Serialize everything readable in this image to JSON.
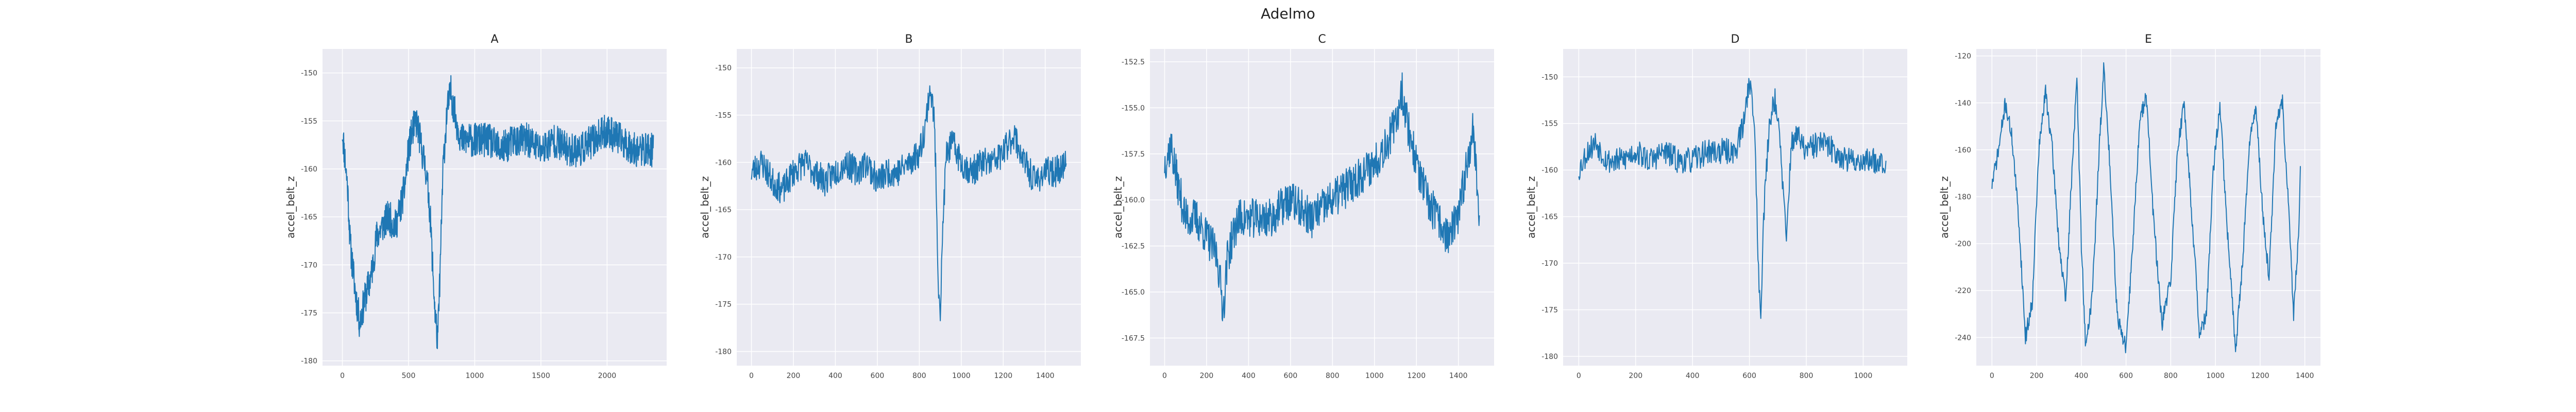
{
  "figure": {
    "title": "Adelmo"
  },
  "style": {
    "plot_bg": "#eaeaf2",
    "grid": "#ffffff",
    "line": "#1f77b4"
  },
  "chart_data": [
    {
      "type": "line",
      "title": "A",
      "xlabel": "",
      "ylabel": "accel_belt_z",
      "xlim": [
        -150,
        2450
      ],
      "ylim": [
        -180.5,
        -147.5
      ],
      "xticks": [
        0,
        500,
        1000,
        1500,
        2000
      ],
      "yticks": [
        -150,
        -155,
        -160,
        -165,
        -170,
        -175,
        -180
      ],
      "grid": true,
      "seed": 11,
      "noise": 1.8,
      "keypoints": [
        [
          0,
          -156
        ],
        [
          20,
          -159
        ],
        [
          40,
          -162
        ],
        [
          60,
          -168
        ],
        [
          100,
          -173
        ],
        [
          130,
          -176
        ],
        [
          180,
          -173
        ],
        [
          220,
          -171
        ],
        [
          260,
          -167
        ],
        [
          300,
          -166
        ],
        [
          350,
          -165
        ],
        [
          400,
          -166
        ],
        [
          440,
          -164
        ],
        [
          470,
          -162
        ],
        [
          500,
          -158
        ],
        [
          530,
          -156
        ],
        [
          560,
          -155
        ],
        [
          600,
          -158
        ],
        [
          630,
          -160
        ],
        [
          660,
          -164
        ],
        [
          700,
          -175
        ],
        [
          720,
          -178
        ],
        [
          740,
          -170
        ],
        [
          760,
          -160
        ],
        [
          790,
          -154
        ],
        [
          820,
          -152
        ],
        [
          860,
          -155
        ],
        [
          900,
          -157
        ],
        [
          1000,
          -157
        ],
        [
          1100,
          -157
        ],
        [
          1200,
          -158
        ],
        [
          1300,
          -157
        ],
        [
          1400,
          -157
        ],
        [
          1500,
          -158
        ],
        [
          1600,
          -157
        ],
        [
          1700,
          -158
        ],
        [
          1800,
          -158
        ],
        [
          1900,
          -157
        ],
        [
          2000,
          -156
        ],
        [
          2100,
          -157
        ],
        [
          2200,
          -158
        ],
        [
          2300,
          -158
        ],
        [
          2350,
          -158
        ]
      ]
    },
    {
      "type": "line",
      "title": "B",
      "xlabel": "",
      "ylabel": "accel_belt_z",
      "xlim": [
        -70,
        1570
      ],
      "ylim": [
        -181.5,
        -148
      ],
      "xticks": [
        0,
        200,
        400,
        600,
        800,
        1000,
        1200,
        1400
      ],
      "yticks": [
        -150,
        -155,
        -160,
        -165,
        -170,
        -175,
        -180
      ],
      "grid": true,
      "seed": 23,
      "noise": 1.6,
      "keypoints": [
        [
          0,
          -161
        ],
        [
          50,
          -160
        ],
        [
          100,
          -162
        ],
        [
          150,
          -163
        ],
        [
          200,
          -161
        ],
        [
          250,
          -160
        ],
        [
          300,
          -161
        ],
        [
          350,
          -162
        ],
        [
          400,
          -161
        ],
        [
          450,
          -160
        ],
        [
          500,
          -161
        ],
        [
          550,
          -160
        ],
        [
          600,
          -162
        ],
        [
          650,
          -161
        ],
        [
          700,
          -161
        ],
        [
          750,
          -160
        ],
        [
          800,
          -159
        ],
        [
          830,
          -156
        ],
        [
          850,
          -152
        ],
        [
          870,
          -155
        ],
        [
          880,
          -162
        ],
        [
          890,
          -172
        ],
        [
          900,
          -176
        ],
        [
          915,
          -165
        ],
        [
          930,
          -159
        ],
        [
          960,
          -158
        ],
        [
          1000,
          -160
        ],
        [
          1050,
          -161
        ],
        [
          1100,
          -160
        ],
        [
          1150,
          -160
        ],
        [
          1200,
          -159
        ],
        [
          1250,
          -157
        ],
        [
          1300,
          -160
        ],
        [
          1350,
          -162
        ],
        [
          1400,
          -161
        ],
        [
          1450,
          -161
        ],
        [
          1500,
          -160
        ]
      ]
    },
    {
      "type": "line",
      "title": "C",
      "xlabel": "",
      "ylabel": "accel_belt_z",
      "xlim": [
        -70,
        1570
      ],
      "ylim": [
        -169,
        -151.8
      ],
      "xticks": [
        0,
        200,
        400,
        600,
        800,
        1000,
        1200,
        1400
      ],
      "yticks": [
        -152.5,
        -155.0,
        -157.5,
        -160.0,
        -162.5,
        -165.0,
        -167.5
      ],
      "grid": true,
      "seed": 37,
      "noise": 1.1,
      "keypoints": [
        [
          0,
          -158
        ],
        [
          30,
          -157
        ],
        [
          60,
          -159
        ],
        [
          100,
          -161
        ],
        [
          150,
          -161
        ],
        [
          200,
          -162
        ],
        [
          250,
          -163
        ],
        [
          280,
          -166
        ],
        [
          300,
          -163
        ],
        [
          350,
          -161
        ],
        [
          400,
          -161
        ],
        [
          500,
          -161
        ],
        [
          600,
          -160
        ],
        [
          700,
          -161
        ],
        [
          800,
          -160
        ],
        [
          900,
          -159
        ],
        [
          1000,
          -158
        ],
        [
          1050,
          -157
        ],
        [
          1100,
          -156
        ],
        [
          1130,
          -154
        ],
        [
          1160,
          -156
        ],
        [
          1200,
          -158
        ],
        [
          1250,
          -160
        ],
        [
          1300,
          -161
        ],
        [
          1350,
          -162
        ],
        [
          1400,
          -161
        ],
        [
          1440,
          -158
        ],
        [
          1470,
          -156
        ],
        [
          1500,
          -161
        ]
      ]
    },
    {
      "type": "line",
      "title": "D",
      "xlabel": "",
      "ylabel": "accel_belt_z",
      "xlim": [
        -55,
        1155
      ],
      "ylim": [
        -181,
        -147
      ],
      "xticks": [
        0,
        200,
        400,
        600,
        800,
        1000
      ],
      "yticks": [
        -150,
        -155,
        -160,
        -165,
        -170,
        -175,
        -180
      ],
      "grid": true,
      "seed": 53,
      "noise": 1.4,
      "keypoints": [
        [
          0,
          -160
        ],
        [
          30,
          -158
        ],
        [
          60,
          -157
        ],
        [
          100,
          -159
        ],
        [
          150,
          -159
        ],
        [
          200,
          -158
        ],
        [
          250,
          -159
        ],
        [
          300,
          -158
        ],
        [
          350,
          -159
        ],
        [
          400,
          -159
        ],
        [
          450,
          -158
        ],
        [
          500,
          -158
        ],
        [
          550,
          -158
        ],
        [
          580,
          -155
        ],
        [
          600,
          -150
        ],
        [
          620,
          -156
        ],
        [
          630,
          -170
        ],
        [
          640,
          -175
        ],
        [
          650,
          -165
        ],
        [
          670,
          -155
        ],
        [
          690,
          -152
        ],
        [
          710,
          -158
        ],
        [
          730,
          -168
        ],
        [
          745,
          -158
        ],
        [
          760,
          -156
        ],
        [
          800,
          -158
        ],
        [
          850,
          -157
        ],
        [
          900,
          -158
        ],
        [
          950,
          -159
        ],
        [
          1000,
          -159
        ],
        [
          1050,
          -159
        ],
        [
          1080,
          -159
        ]
      ]
    },
    {
      "type": "line",
      "title": "E",
      "xlabel": "",
      "ylabel": "accel_belt_z",
      "xlim": [
        -70,
        1470
      ],
      "ylim": [
        -252,
        -117
      ],
      "xticks": [
        0,
        200,
        400,
        600,
        800,
        1000,
        1200,
        1400
      ],
      "yticks": [
        -120,
        -140,
        -160,
        -180,
        -200,
        -220,
        -240
      ],
      "grid": true,
      "seed": 71,
      "noise": 3.5,
      "keypoints": [
        [
          0,
          -175
        ],
        [
          30,
          -160
        ],
        [
          60,
          -140
        ],
        [
          90,
          -155
        ],
        [
          120,
          -190
        ],
        [
          150,
          -240
        ],
        [
          180,
          -225
        ],
        [
          210,
          -160
        ],
        [
          240,
          -135
        ],
        [
          270,
          -160
        ],
        [
          300,
          -200
        ],
        [
          330,
          -225
        ],
        [
          360,
          -165
        ],
        [
          380,
          -130
        ],
        [
          400,
          -200
        ],
        [
          420,
          -245
        ],
        [
          450,
          -220
        ],
        [
          480,
          -160
        ],
        [
          500,
          -125
        ],
        [
          530,
          -170
        ],
        [
          560,
          -230
        ],
        [
          600,
          -245
        ],
        [
          630,
          -200
        ],
        [
          660,
          -150
        ],
        [
          690,
          -135
        ],
        [
          720,
          -185
        ],
        [
          760,
          -235
        ],
        [
          800,
          -215
        ],
        [
          830,
          -160
        ],
        [
          860,
          -140
        ],
        [
          900,
          -195
        ],
        [
          930,
          -240
        ],
        [
          960,
          -230
        ],
        [
          990,
          -170
        ],
        [
          1020,
          -140
        ],
        [
          1050,
          -190
        ],
        [
          1090,
          -245
        ],
        [
          1120,
          -210
        ],
        [
          1150,
          -160
        ],
        [
          1180,
          -140
        ],
        [
          1210,
          -185
        ],
        [
          1240,
          -215
        ],
        [
          1270,
          -150
        ],
        [
          1300,
          -140
        ],
        [
          1330,
          -190
        ],
        [
          1350,
          -230
        ],
        [
          1370,
          -200
        ],
        [
          1380,
          -170
        ]
      ]
    }
  ]
}
